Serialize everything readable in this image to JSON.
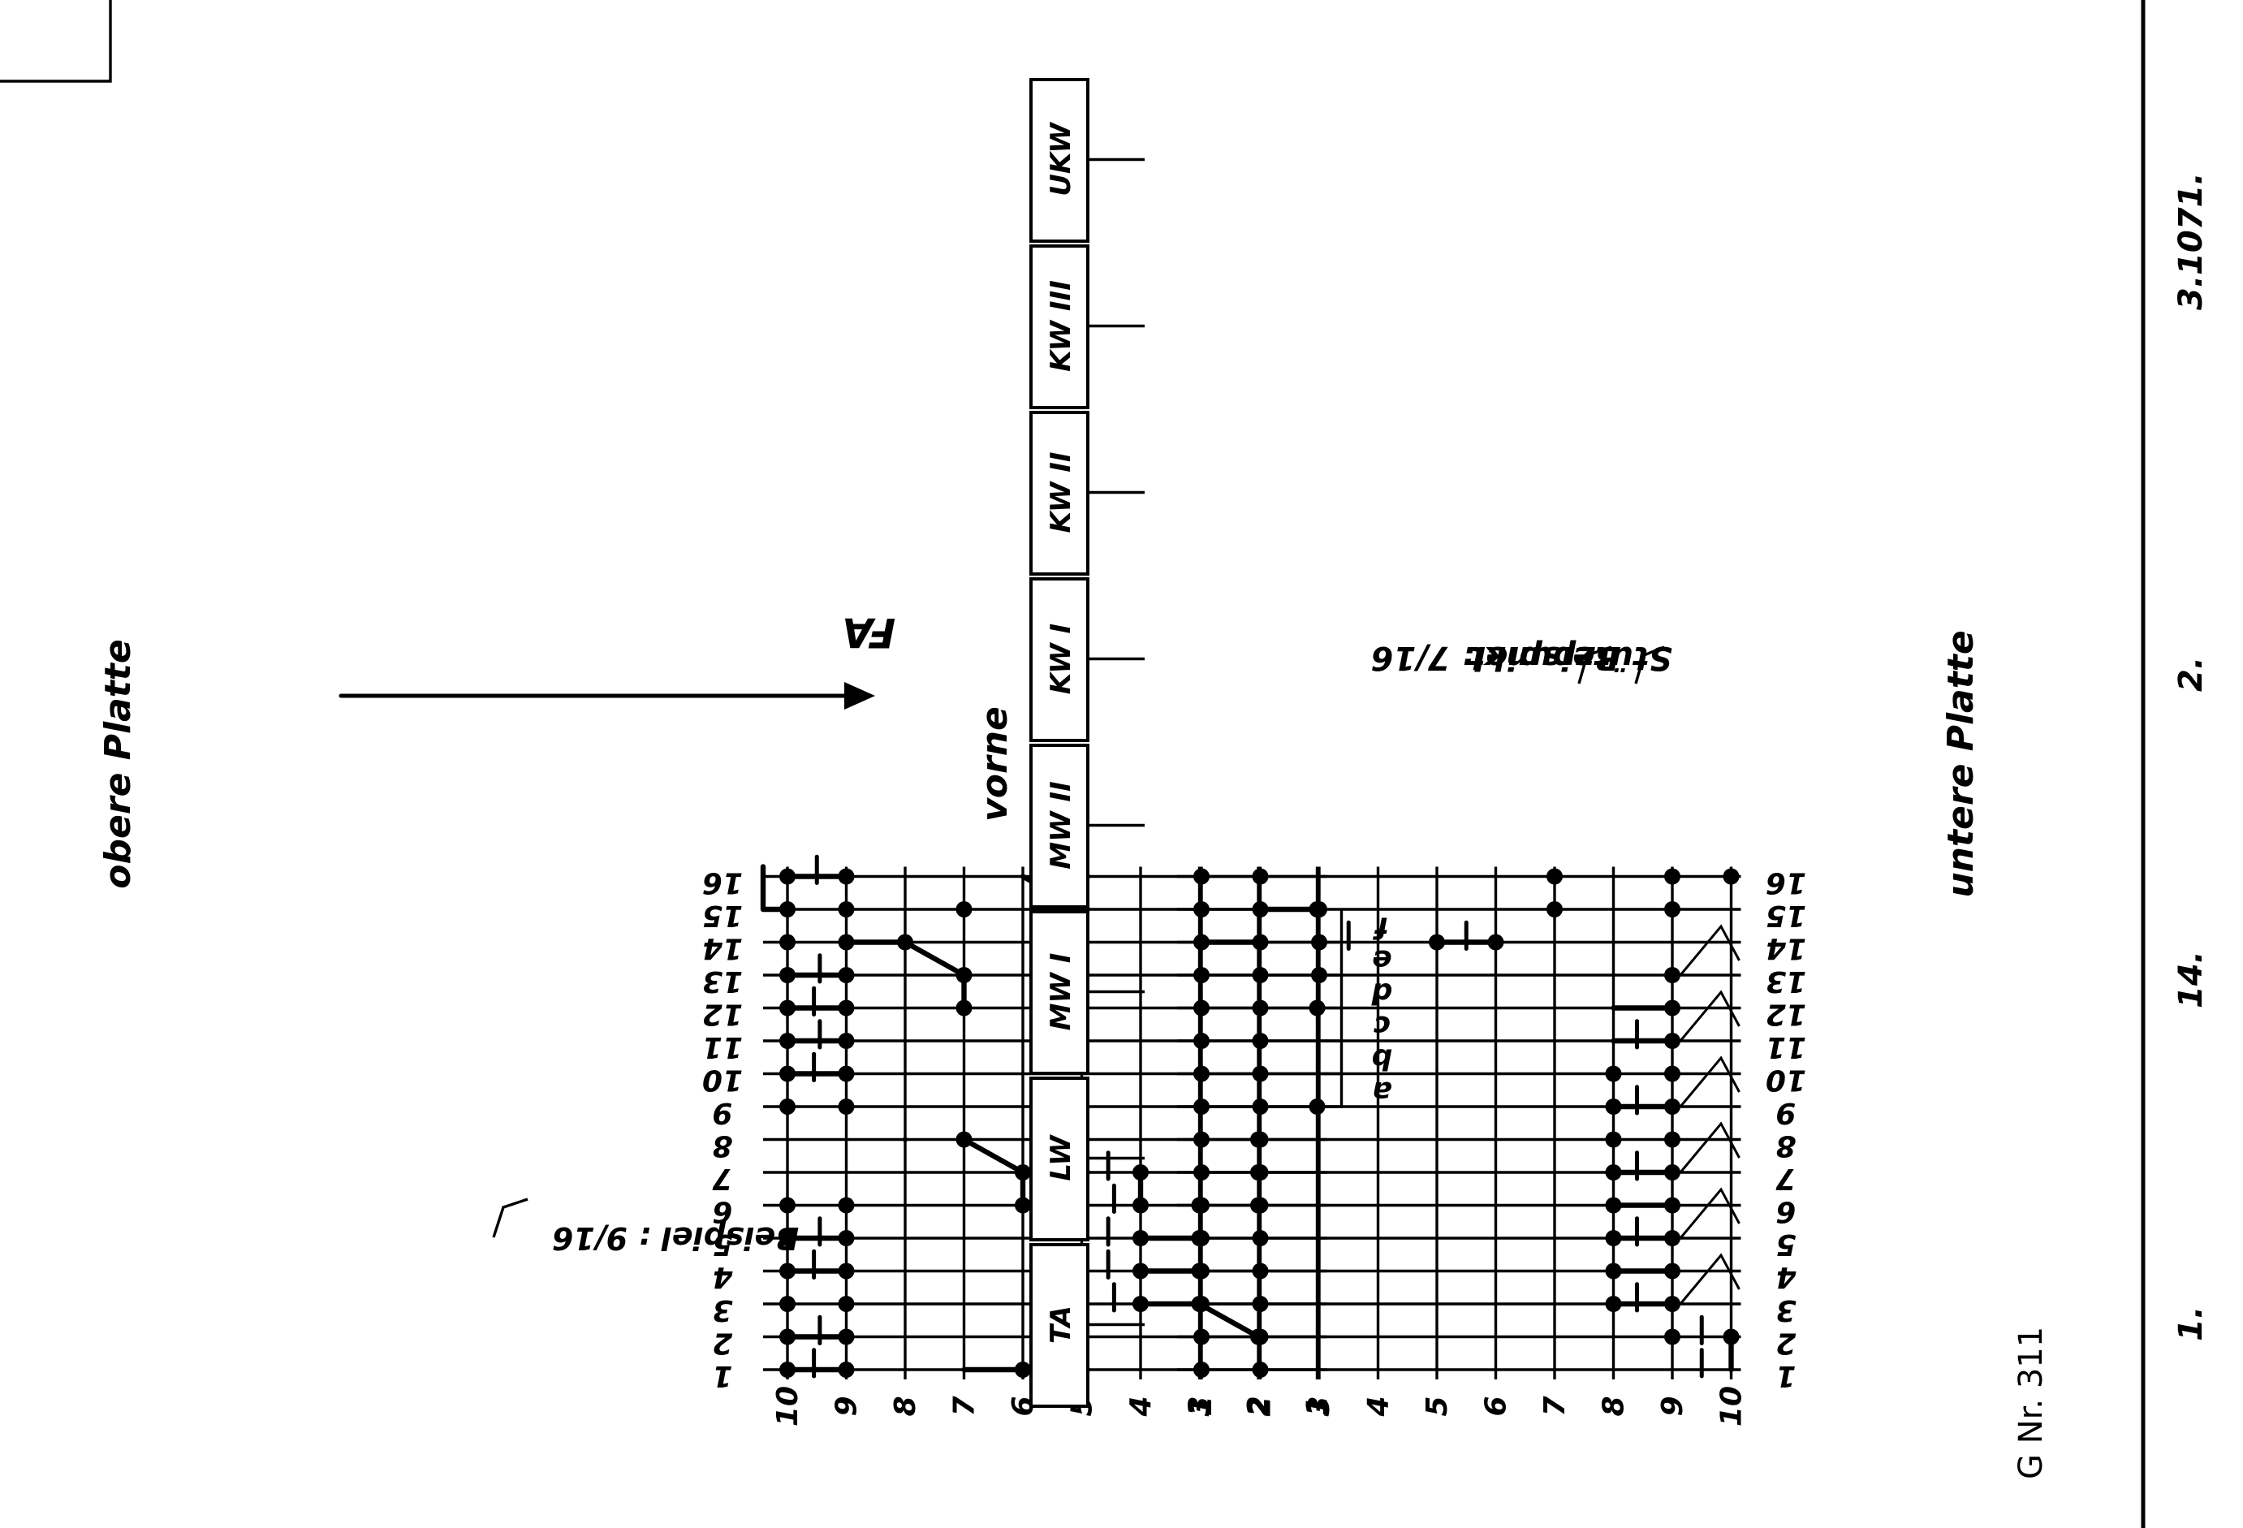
{
  "upper_plate": {
    "title": "obere Platte",
    "columns": [
      "1",
      "2",
      "3",
      "4",
      "5",
      "6",
      "7",
      "8",
      "9",
      "10",
      "11",
      "12",
      "13",
      "14",
      "15",
      "16"
    ],
    "rows": [
      "10",
      "9",
      "8",
      "7",
      "6",
      "5",
      "4",
      "3",
      "2",
      "1"
    ],
    "example_label": "Beispiel : 9/16",
    "arrow_label": "FA",
    "sections": [
      "a",
      "b",
      "c",
      "d",
      "e",
      "f"
    ]
  },
  "front_label": "vorne",
  "front_boxes": [
    "TA",
    "LW",
    "MW I",
    "MW II",
    "KW I",
    "KW II",
    "KW III",
    "UKW"
  ],
  "lower_plate": {
    "title": "untere Platte",
    "columns": [
      "1",
      "2",
      "3",
      "4",
      "5",
      "6",
      "7",
      "8",
      "9",
      "10",
      "11",
      "12",
      "13",
      "14",
      "15",
      "16"
    ],
    "rows": [
      "1",
      "2",
      "3",
      "4",
      "5",
      "6",
      "7",
      "8",
      "9",
      "10"
    ],
    "example_label": "Beispiel: 7/16",
    "support_label": "Stützpunkt"
  },
  "stamp": "G Nr. 311",
  "footer": {
    "a": "1.",
    "b": "14.",
    "c": "2.",
    "d": "3.1071."
  }
}
